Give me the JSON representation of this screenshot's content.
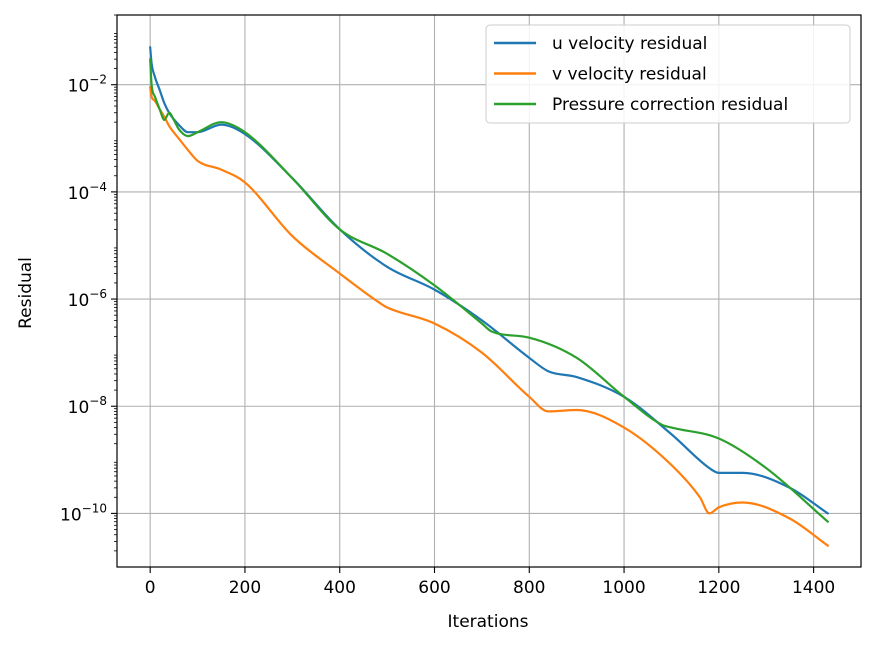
{
  "chart_data": {
    "type": "line",
    "title": "",
    "xlabel": "Iterations",
    "ylabel": "Residual",
    "xlim": [
      -70,
      1500
    ],
    "ylim": [
      1e-11,
      0.2
    ],
    "yscale": "log",
    "grid": true,
    "legend_position": "top-right",
    "x_ticks": [
      0,
      200,
      400,
      600,
      800,
      1000,
      1200,
      1400
    ],
    "x_tick_labels": [
      "0",
      "200",
      "400",
      "600",
      "800",
      "1000",
      "1200",
      "1400"
    ],
    "y_ticks": [
      1e-10,
      1e-08,
      1e-06,
      0.0001,
      0.01
    ],
    "y_tick_bases": [
      "10",
      "10",
      "10",
      "10",
      "10"
    ],
    "y_tick_exponents": [
      "−10",
      "−8",
      "−6",
      "−4",
      "−2"
    ],
    "series": [
      {
        "name": "u velocity residual",
        "color": "#1f77b4",
        "x": [
          0,
          3,
          10,
          20,
          30,
          40,
          60,
          80,
          100,
          150,
          200,
          300,
          400,
          500,
          600,
          700,
          800,
          840,
          900,
          1000,
          1100,
          1180,
          1200,
          1250,
          1350,
          1430
        ],
        "y": [
          0.05,
          0.025,
          0.014,
          0.008,
          0.0045,
          0.003,
          0.0018,
          0.0013,
          0.0013,
          0.0018,
          0.0012,
          0.00018,
          2e-05,
          4e-06,
          1.5e-06,
          4e-07,
          8e-08,
          4.5e-08,
          3.5e-08,
          1.5e-08,
          3e-09,
          7e-10,
          5.7e-10,
          5.7e-10,
          3e-10,
          1e-10
        ]
      },
      {
        "name": "v velocity residual",
        "color": "#ff7f0e",
        "x": [
          0,
          3,
          10,
          20,
          30,
          40,
          60,
          80,
          100,
          150,
          200,
          300,
          400,
          480,
          500,
          600,
          700,
          800,
          840,
          900,
          1000,
          1100,
          1160,
          1180,
          1200,
          1250,
          1350,
          1430
        ],
        "y": [
          0.009,
          0.006,
          0.005,
          0.0035,
          0.0025,
          0.0017,
          0.001,
          0.0006,
          0.00038,
          0.00026,
          0.00015,
          1.5e-05,
          3e-06,
          9e-07,
          7e-07,
          3.5e-07,
          1e-07,
          1.5e-08,
          8e-09,
          8.5e-09,
          4e-09,
          8e-10,
          2e-10,
          1e-10,
          1.3e-10,
          1.6e-10,
          8e-11,
          2.5e-11
        ]
      },
      {
        "name": "Pressure correction residual",
        "color": "#2ca02c",
        "x": [
          0,
          3,
          10,
          20,
          30,
          40,
          50,
          60,
          80,
          100,
          150,
          200,
          300,
          400,
          500,
          600,
          700,
          720,
          800,
          900,
          1000,
          1080,
          1100,
          1200,
          1300,
          1430
        ],
        "y": [
          0.03,
          0.01,
          0.006,
          0.0035,
          0.0022,
          0.003,
          0.0022,
          0.0015,
          0.0011,
          0.0013,
          0.002,
          0.0013,
          0.00018,
          2e-05,
          7e-06,
          1.8e-06,
          3.5e-07,
          2.5e-07,
          1.9e-07,
          8e-08,
          1.5e-08,
          4.5e-09,
          4e-09,
          2.5e-09,
          7e-10,
          7e-11
        ]
      }
    ]
  }
}
